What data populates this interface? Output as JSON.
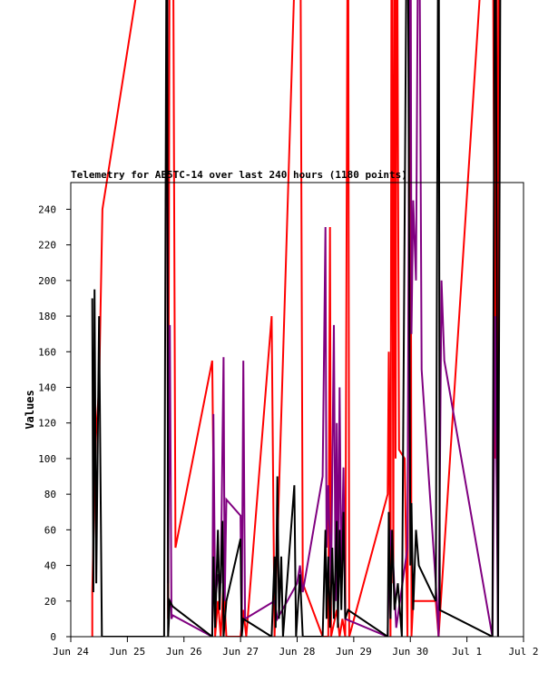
{
  "chart_data": {
    "type": "line",
    "title": "Telemetry for AE5TC-14 over last 240 hours (1180 points)",
    "xlabel": "",
    "ylabel": "Values",
    "x_ticks": [
      "Jun 24",
      "Jun 25",
      "Jun 26",
      "Jun 27",
      "Jun 28",
      "Jun 29",
      "Jun 30",
      "Jul 1",
      "Jul 2"
    ],
    "xlim": [
      "Jun 24",
      "Jul 2"
    ],
    "y_ticks": [
      0,
      20,
      40,
      60,
      80,
      100,
      120,
      140,
      160,
      180,
      200,
      220,
      240
    ],
    "ylim": [
      0,
      255
    ],
    "grid": false,
    "series": [
      {
        "color": "#ff0000",
        "points": [
          [
            24.38,
            0
          ],
          [
            24.38,
            25
          ],
          [
            24.44,
            110
          ],
          [
            24.5,
            140
          ],
          [
            24.56,
            240
          ],
          [
            25.7,
            255
          ],
          [
            25.72,
            10
          ],
          [
            25.75,
            255
          ],
          [
            25.8,
            255
          ],
          [
            25.85,
            50
          ],
          [
            26.5,
            155
          ],
          [
            26.55,
            0
          ],
          [
            26.6,
            20
          ],
          [
            26.65,
            0
          ],
          [
            26.7,
            30
          ],
          [
            26.75,
            0
          ],
          [
            27.0,
            0
          ],
          [
            27.05,
            15
          ],
          [
            27.1,
            0
          ],
          [
            27.55,
            180
          ],
          [
            27.6,
            0
          ],
          [
            28.05,
            255
          ],
          [
            28.1,
            30
          ],
          [
            28.45,
            0
          ],
          [
            28.55,
            0
          ],
          [
            28.58,
            230
          ],
          [
            28.6,
            0
          ],
          [
            28.7,
            15
          ],
          [
            28.75,
            0
          ],
          [
            28.8,
            10
          ],
          [
            28.85,
            0
          ],
          [
            28.9,
            255
          ],
          [
            28.92,
            0
          ],
          [
            29.6,
            80
          ],
          [
            29.62,
            160
          ],
          [
            29.65,
            0
          ],
          [
            29.67,
            255
          ],
          [
            29.7,
            30
          ],
          [
            29.72,
            255
          ],
          [
            29.74,
            100
          ],
          [
            29.76,
            255
          ],
          [
            29.8,
            105
          ],
          [
            29.9,
            100
          ],
          [
            29.95,
            0
          ],
          [
            30.0,
            255
          ],
          [
            30.02,
            0
          ],
          [
            30.05,
            20
          ],
          [
            30.2,
            20
          ],
          [
            30.45,
            20
          ],
          [
            30.5,
            0
          ],
          [
            31.45,
            255
          ],
          [
            31.5,
            100
          ],
          [
            31.52,
            255
          ],
          [
            31.55,
            60
          ],
          [
            31.57,
            255
          ]
        ]
      },
      {
        "color": "#800080",
        "points": [
          [
            25.7,
            255
          ],
          [
            25.72,
            30
          ],
          [
            25.75,
            175
          ],
          [
            25.78,
            10
          ],
          [
            25.8,
            12
          ],
          [
            26.5,
            0
          ],
          [
            26.52,
            125
          ],
          [
            26.55,
            20
          ],
          [
            26.6,
            35
          ],
          [
            26.65,
            30
          ],
          [
            26.7,
            157
          ],
          [
            26.72,
            20
          ],
          [
            26.75,
            77
          ],
          [
            27.0,
            68
          ],
          [
            27.02,
            0
          ],
          [
            27.05,
            155
          ],
          [
            27.08,
            10
          ],
          [
            27.6,
            20
          ],
          [
            27.65,
            10
          ],
          [
            28.0,
            30
          ],
          [
            28.05,
            40
          ],
          [
            28.1,
            25
          ],
          [
            28.45,
            90
          ],
          [
            28.5,
            230
          ],
          [
            28.52,
            50
          ],
          [
            28.55,
            85
          ],
          [
            28.6,
            30
          ],
          [
            28.65,
            175
          ],
          [
            28.68,
            20
          ],
          [
            28.7,
            120
          ],
          [
            28.72,
            15
          ],
          [
            28.75,
            140
          ],
          [
            28.78,
            30
          ],
          [
            28.82,
            95
          ],
          [
            28.85,
            10
          ],
          [
            29.6,
            0
          ],
          [
            29.62,
            35
          ],
          [
            29.65,
            60
          ],
          [
            29.7,
            40
          ],
          [
            29.75,
            5
          ],
          [
            29.95,
            50
          ],
          [
            30.0,
            255
          ],
          [
            30.02,
            170
          ],
          [
            30.05,
            245
          ],
          [
            30.1,
            200
          ],
          [
            30.15,
            255
          ],
          [
            30.2,
            150
          ],
          [
            30.45,
            30
          ],
          [
            30.5,
            0
          ],
          [
            30.55,
            200
          ],
          [
            30.6,
            155
          ],
          [
            31.45,
            0
          ],
          [
            31.5,
            180
          ],
          [
            31.55,
            0
          ]
        ]
      },
      {
        "color": "#000000",
        "points": [
          [
            24.38,
            190
          ],
          [
            24.4,
            25
          ],
          [
            24.42,
            195
          ],
          [
            24.45,
            30
          ],
          [
            24.5,
            180
          ],
          [
            24.55,
            0
          ],
          [
            25.65,
            0
          ],
          [
            25.7,
            255
          ],
          [
            25.72,
            0
          ],
          [
            25.75,
            20
          ],
          [
            25.8,
            17
          ],
          [
            26.5,
            0
          ],
          [
            26.52,
            45
          ],
          [
            26.55,
            5
          ],
          [
            26.6,
            60
          ],
          [
            26.63,
            15
          ],
          [
            26.68,
            65
          ],
          [
            26.7,
            0
          ],
          [
            26.75,
            20
          ],
          [
            27.0,
            55
          ],
          [
            27.02,
            0
          ],
          [
            27.05,
            10
          ],
          [
            27.55,
            0
          ],
          [
            27.6,
            45
          ],
          [
            27.62,
            5
          ],
          [
            27.65,
            90
          ],
          [
            27.68,
            10
          ],
          [
            27.72,
            45
          ],
          [
            27.75,
            0
          ],
          [
            27.95,
            85
          ],
          [
            27.98,
            0
          ],
          [
            28.05,
            35
          ],
          [
            28.1,
            0
          ],
          [
            28.45,
            0
          ],
          [
            28.5,
            60
          ],
          [
            28.52,
            10
          ],
          [
            28.55,
            45
          ],
          [
            28.58,
            5
          ],
          [
            28.62,
            50
          ],
          [
            28.65,
            10
          ],
          [
            28.7,
            65
          ],
          [
            28.72,
            5
          ],
          [
            28.75,
            60
          ],
          [
            28.78,
            15
          ],
          [
            28.82,
            70
          ],
          [
            28.85,
            10
          ],
          [
            28.9,
            15
          ],
          [
            29.6,
            0
          ],
          [
            29.62,
            70
          ],
          [
            29.65,
            10
          ],
          [
            29.68,
            60
          ],
          [
            29.72,
            15
          ],
          [
            29.78,
            30
          ],
          [
            29.85,
            0
          ],
          [
            29.95,
            255
          ],
          [
            30.0,
            40
          ],
          [
            30.02,
            75
          ],
          [
            30.05,
            15
          ],
          [
            30.1,
            60
          ],
          [
            30.15,
            40
          ],
          [
            30.45,
            20
          ],
          [
            30.5,
            255
          ],
          [
            30.52,
            15
          ],
          [
            31.45,
            0
          ],
          [
            31.5,
            255
          ],
          [
            31.55,
            0
          ],
          [
            31.6,
            255
          ]
        ]
      }
    ]
  }
}
